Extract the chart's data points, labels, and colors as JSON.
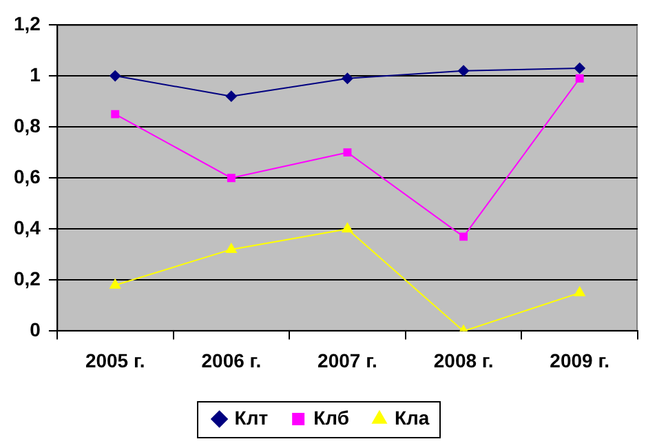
{
  "chart_data": {
    "type": "line",
    "categories": [
      "2005 г.",
      "2006 г.",
      "2007 г.",
      "2008 г.",
      "2009 г."
    ],
    "series": [
      {
        "name": "Клт",
        "color": "#000080",
        "marker": "diamond",
        "values": [
          1.0,
          0.92,
          0.99,
          1.02,
          1.03
        ]
      },
      {
        "name": "Клб",
        "color": "#ff00ff",
        "marker": "square",
        "values": [
          0.85,
          0.6,
          0.7,
          0.37,
          0.99
        ]
      },
      {
        "name": "Кла",
        "color": "#ffff00",
        "marker": "triangle",
        "values": [
          0.18,
          0.32,
          0.4,
          0.0,
          0.15
        ]
      }
    ],
    "ylim": [
      0,
      1.2
    ],
    "yticks": [
      0,
      {
        "value": 0.2,
        "label": "0,2"
      },
      {
        "value": 0.4,
        "label": "0,4"
      },
      {
        "value": 0.6,
        "label": "0,6"
      },
      {
        "value": 0.8,
        "label": "0,8"
      },
      1,
      {
        "value": 1.2,
        "label": "1,2"
      }
    ],
    "grid": "y",
    "legend": "bottom"
  }
}
